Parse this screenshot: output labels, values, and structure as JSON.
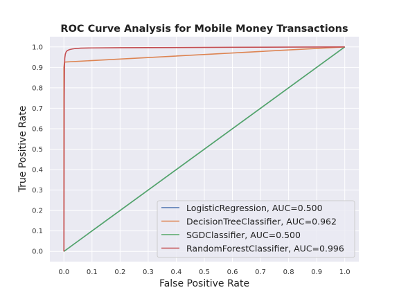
{
  "chart_data": {
    "type": "line",
    "title": "ROC Curve Analysis for Mobile Money Transactions",
    "xlabel": "False Positive Rate",
    "ylabel": "True Positive Rate",
    "xlim": [
      -0.05,
      1.05
    ],
    "ylim": [
      -0.05,
      1.05
    ],
    "xticks": [
      0.0,
      0.1,
      0.2,
      0.3,
      0.4,
      0.5,
      0.6,
      0.7,
      0.8,
      0.9,
      1.0
    ],
    "xtick_labels": [
      "0.0",
      "0.1",
      "0.2",
      "0.3",
      "0.4",
      "0.5",
      "0.6",
      "0.7",
      "0.8",
      "0.9",
      "1.0"
    ],
    "yticks": [
      0.0,
      0.1,
      0.2,
      0.3,
      0.4,
      0.5,
      0.6,
      0.7,
      0.8,
      0.9,
      1.0
    ],
    "ytick_labels": [
      "0.0",
      "0.1",
      "0.2",
      "0.3",
      "0.4",
      "0.5",
      "0.6",
      "0.7",
      "0.8",
      "0.9",
      "1.0"
    ],
    "grid": true,
    "legend_position": "lower-right",
    "background_color": "#eaeaf2",
    "series": [
      {
        "name": "LogisticRegression, AUC=0.500",
        "color": "#4c72b0",
        "x": [
          0.0,
          1.0
        ],
        "y": [
          0.0,
          1.0
        ]
      },
      {
        "name": "DecisionTreeClassifier, AUC=0.962",
        "color": "#dd8452",
        "x": [
          0.0,
          0.0,
          0.0,
          0.002,
          1.0
        ],
        "y": [
          0.0,
          0.5,
          0.9,
          0.926,
          1.0
        ]
      },
      {
        "name": "SGDClassifier, AUC=0.500",
        "color": "#55a868",
        "x": [
          0.0,
          1.0
        ],
        "y": [
          0.0,
          1.0
        ]
      },
      {
        "name": "RandomForestClassifier, AUC=0.996",
        "color": "#c44e52",
        "x": [
          0.0,
          0.001,
          0.002,
          0.003,
          0.005,
          0.008,
          0.012,
          0.02,
          0.03,
          0.04,
          0.06,
          0.1,
          0.2,
          0.4,
          0.6,
          0.8,
          1.0
        ],
        "y": [
          0.0,
          0.75,
          0.9,
          0.945,
          0.965,
          0.976,
          0.982,
          0.987,
          0.99,
          0.992,
          0.994,
          0.995,
          0.996,
          0.997,
          0.998,
          0.999,
          1.0
        ]
      }
    ]
  }
}
